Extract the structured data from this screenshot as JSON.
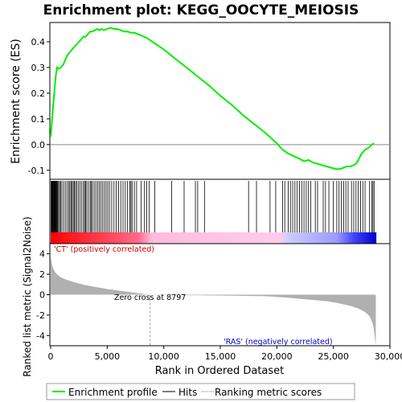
{
  "chart_data": {
    "type": "line",
    "title": "Enrichment plot: KEGG_OOCYTE_MEIOSIS",
    "es_panel": {
      "ylabel": "Enrichment score (ES)",
      "ylim": [
        -0.135,
        0.475
      ],
      "yticks": [
        -0.1,
        0.0,
        0.1,
        0.2,
        0.3,
        0.4
      ],
      "ytick_labels": [
        "-0.1",
        "0.0",
        "0.1",
        "0.2",
        "0.3",
        "0.4"
      ],
      "series": [
        {
          "color": "#00ee00",
          "x": [
            0,
            80,
            150,
            220,
            300,
            380,
            460,
            560,
            700,
            900,
            1100,
            1300,
            1500,
            1700,
            1900,
            2100,
            2300,
            2500,
            2700,
            2900,
            3100,
            3300,
            3500,
            3700,
            3900,
            4100,
            4300,
            4500,
            4700,
            5000,
            5300,
            5600,
            5900,
            6200,
            6500,
            6800,
            7100,
            7400,
            7700,
            8000,
            8500,
            9000,
            10000,
            11000,
            12000,
            13000,
            14000,
            15000,
            16000,
            17000,
            18000,
            19000,
            20000,
            20500,
            21000,
            21500,
            22000,
            22400,
            22800,
            23200,
            23600,
            24000,
            24400,
            24800,
            25200,
            25600,
            25900,
            26200,
            26500,
            26800,
            27000,
            27200,
            27500,
            27800,
            28000,
            28200,
            28400,
            28600
          ],
          "y": [
            0.03,
            0.07,
            0.11,
            0.15,
            0.19,
            0.23,
            0.27,
            0.3,
            0.295,
            0.3,
            0.31,
            0.33,
            0.35,
            0.36,
            0.37,
            0.38,
            0.39,
            0.4,
            0.41,
            0.42,
            0.42,
            0.43,
            0.44,
            0.44,
            0.445,
            0.45,
            0.445,
            0.45,
            0.445,
            0.45,
            0.455,
            0.45,
            0.45,
            0.445,
            0.44,
            0.44,
            0.435,
            0.435,
            0.43,
            0.425,
            0.415,
            0.4,
            0.37,
            0.335,
            0.3,
            0.265,
            0.23,
            0.19,
            0.155,
            0.115,
            0.08,
            0.045,
            0.005,
            -0.02,
            -0.035,
            -0.045,
            -0.055,
            -0.065,
            -0.06,
            -0.07,
            -0.075,
            -0.08,
            -0.085,
            -0.09,
            -0.095,
            -0.095,
            -0.09,
            -0.085,
            -0.085,
            -0.08,
            -0.075,
            -0.06,
            -0.035,
            -0.02,
            -0.015,
            -0.01,
            0.0,
            0.005
          ]
        }
      ]
    },
    "hits_panel": {
      "hit_positions": [
        40,
        90,
        130,
        170,
        210,
        250,
        290,
        330,
        370,
        410,
        450,
        500,
        560,
        620,
        700,
        790,
        880,
        1000,
        1150,
        1300,
        1450,
        1600,
        1700,
        1800,
        1900,
        2000,
        2100,
        2200,
        2300,
        2450,
        2600,
        2750,
        2900,
        3000,
        3100,
        3200,
        3350,
        3500,
        3600,
        3700,
        3850,
        4000,
        4150,
        4300,
        4450,
        4600,
        4750,
        4900,
        5050,
        5200,
        5400,
        5600,
        5800,
        6000,
        6200,
        6400,
        6600,
        6800,
        7000,
        7100,
        7200,
        7400,
        7600,
        8000,
        8300,
        8500,
        8700,
        9200,
        10700,
        11800,
        12800,
        13000,
        13600,
        17500,
        18200,
        19400,
        19900,
        20500,
        20700,
        21000,
        21200,
        21400,
        21600,
        21800,
        22000,
        22200,
        22400,
        22600,
        22800,
        23000,
        23400,
        23600,
        24100,
        24300,
        24600,
        25000,
        25300,
        25500,
        25700,
        25900,
        26100,
        26300,
        26600,
        26800,
        27000,
        27200,
        27400,
        27600,
        27800,
        28200,
        28400,
        28500,
        28600
      ]
    },
    "metric_panel": {
      "ylabel": "Ranked list metric (Signal2Noise)",
      "ylim": [
        -5,
        5
      ],
      "yticks": [
        -4,
        -2,
        0,
        2,
        4
      ],
      "ytick_labels": [
        "-4",
        "-2",
        "0",
        "2",
        "4"
      ],
      "profile_x": [
        0,
        30,
        80,
        150,
        250,
        400,
        600,
        900,
        1300,
        2000,
        3000,
        4000,
        5000,
        6000,
        7000,
        8000,
        8797,
        10000,
        13000,
        16000,
        19000,
        21000,
        23000,
        24500,
        25500,
        26500,
        27200,
        27800,
        28200,
        28500,
        28650,
        28750
      ],
      "profile_y": [
        4.8,
        3.6,
        3.2,
        2.8,
        2.5,
        2.2,
        1.95,
        1.7,
        1.5,
        1.25,
        0.95,
        0.75,
        0.55,
        0.4,
        0.25,
        0.1,
        0.0,
        -0.03,
        -0.06,
        -0.1,
        -0.15,
        -0.3,
        -0.5,
        -0.65,
        -0.85,
        -1.1,
        -1.35,
        -1.7,
        -2.1,
        -2.9,
        -4.0,
        -5.0
      ],
      "annotation_pos": "'CT' (positively correlated)",
      "annotation_neg": "'RAS' (negatively correlated)",
      "zero_cross_label": "Zero cross at 8797",
      "zero_cross": 8797
    },
    "xlabel": "Rank in Ordered Dataset",
    "xlim": [
      0,
      30000
    ],
    "xticks": [
      0,
      5000,
      10000,
      15000,
      20000,
      25000,
      30000
    ],
    "xtick_labels": [
      "0",
      "5,000",
      "10,000",
      "15,000",
      "20,000",
      "25,000",
      "30,000"
    ],
    "n_genes": 28800,
    "legend": {
      "placement": "bottom",
      "entries": [
        "Enrichment profile",
        "Hits",
        "Ranking metric scores"
      ]
    },
    "colors": {
      "profile": "#00ee00",
      "positive": "#ff0000",
      "negative": "#0000ff",
      "mid_positive": "#ffbbdd",
      "mid_negative": "#bbbbff",
      "metric_fill": "#b0b0b0",
      "annotation_pos_color": "#cc0000",
      "annotation_neg_color": "#0000cc"
    }
  }
}
